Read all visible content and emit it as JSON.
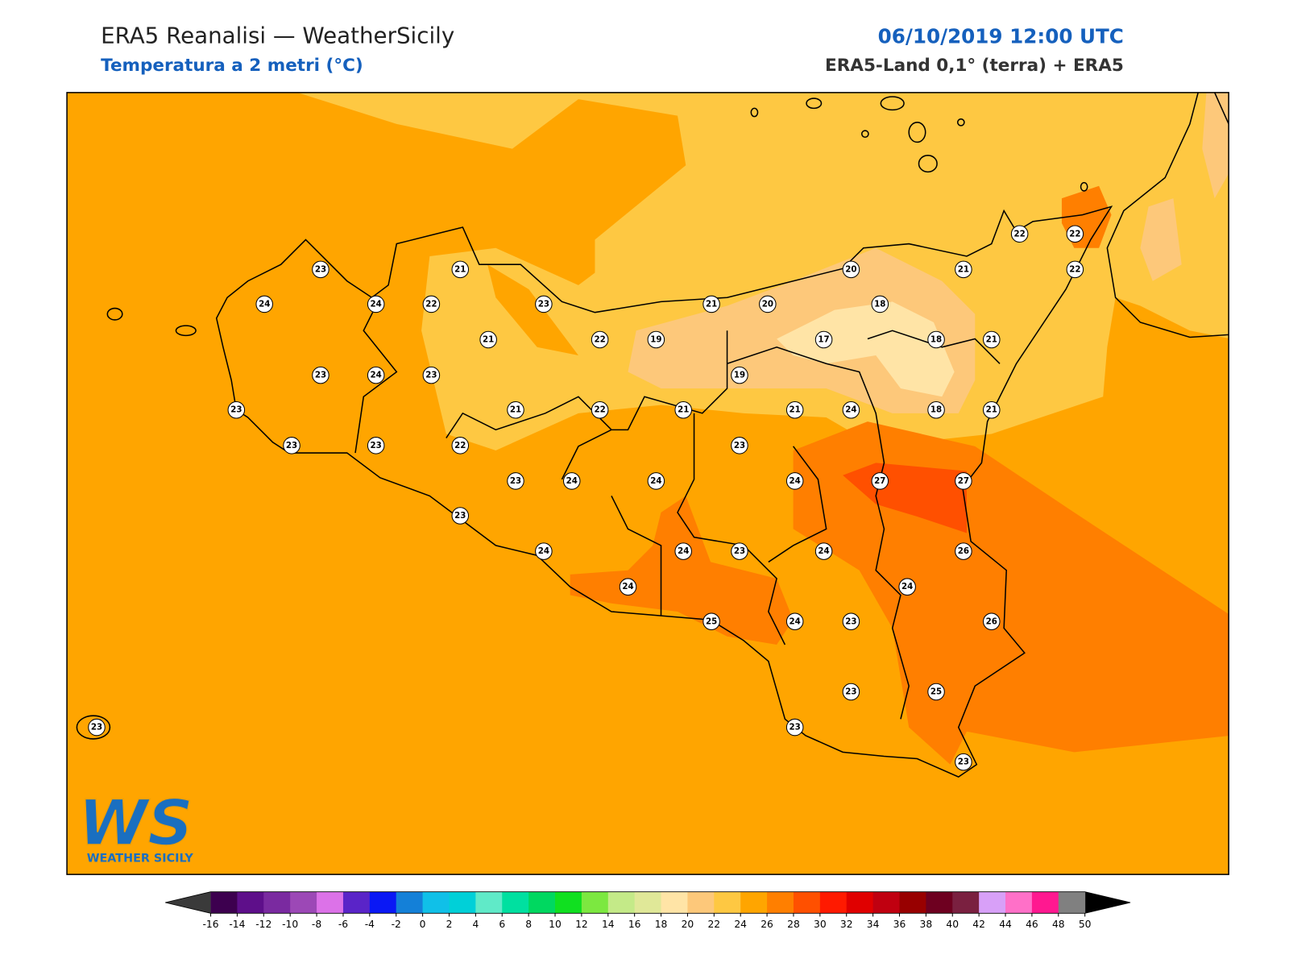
{
  "header": {
    "title": "ERA5 Reanalisi — WeatherSicily",
    "subtitle": "Temperatura a 2 metri (°C)",
    "datetime": "06/10/2019 12:00 UTC",
    "source": "ERA5-Land 0,1° (terra) + ERA5"
  },
  "stations": [
    23,
    21,
    24,
    24,
    22,
    23,
    21,
    22,
    19,
    23,
    24,
    23,
    23,
    21,
    22,
    21,
    23,
    23,
    22,
    23,
    24,
    24,
    23,
    24,
    24,
    21,
    20,
    20,
    18,
    17,
    18,
    21,
    21,
    22,
    22,
    22,
    19,
    21,
    24,
    18,
    21,
    23,
    24,
    27,
    27,
    24,
    23,
    24,
    26,
    24,
    25,
    24,
    23,
    26,
    23,
    25,
    23,
    23,
    23
  ],
  "colorbar": {
    "ticks": [
      -16,
      -14,
      -12,
      -10,
      -8,
      -6,
      -4,
      -2,
      0,
      2,
      4,
      6,
      8,
      10,
      12,
      14,
      16,
      18,
      20,
      22,
      24,
      26,
      28,
      30,
      32,
      34,
      36,
      38,
      40,
      42,
      44,
      46,
      48,
      50
    ],
    "colors": [
      "#3d004f",
      "#5e0f8a",
      "#7a2aa0",
      "#9c48b6",
      "#dc72e8",
      "#5a24c8",
      "#0a18f5",
      "#1480d8",
      "#10c0e8",
      "#00d0d8",
      "#60eac8",
      "#00e0a0",
      "#00d860",
      "#10e020",
      "#7ce840",
      "#c4ea88",
      "#e0e898",
      "#ffe4a6",
      "#fdc87a",
      "#fec842",
      "#ffa500",
      "#ff7f00",
      "#ff5000",
      "#ff1a00",
      "#e00000",
      "#c00010",
      "#980000",
      "#6e0020",
      "#7a2040",
      "#d8a0f8",
      "#ff70c8",
      "#ff1890",
      "#808080"
    ],
    "under_color": "#3a3a3a",
    "over_color": "#000000"
  },
  "logo": {
    "mark": "WS",
    "text": "WEATHER SICILY"
  }
}
